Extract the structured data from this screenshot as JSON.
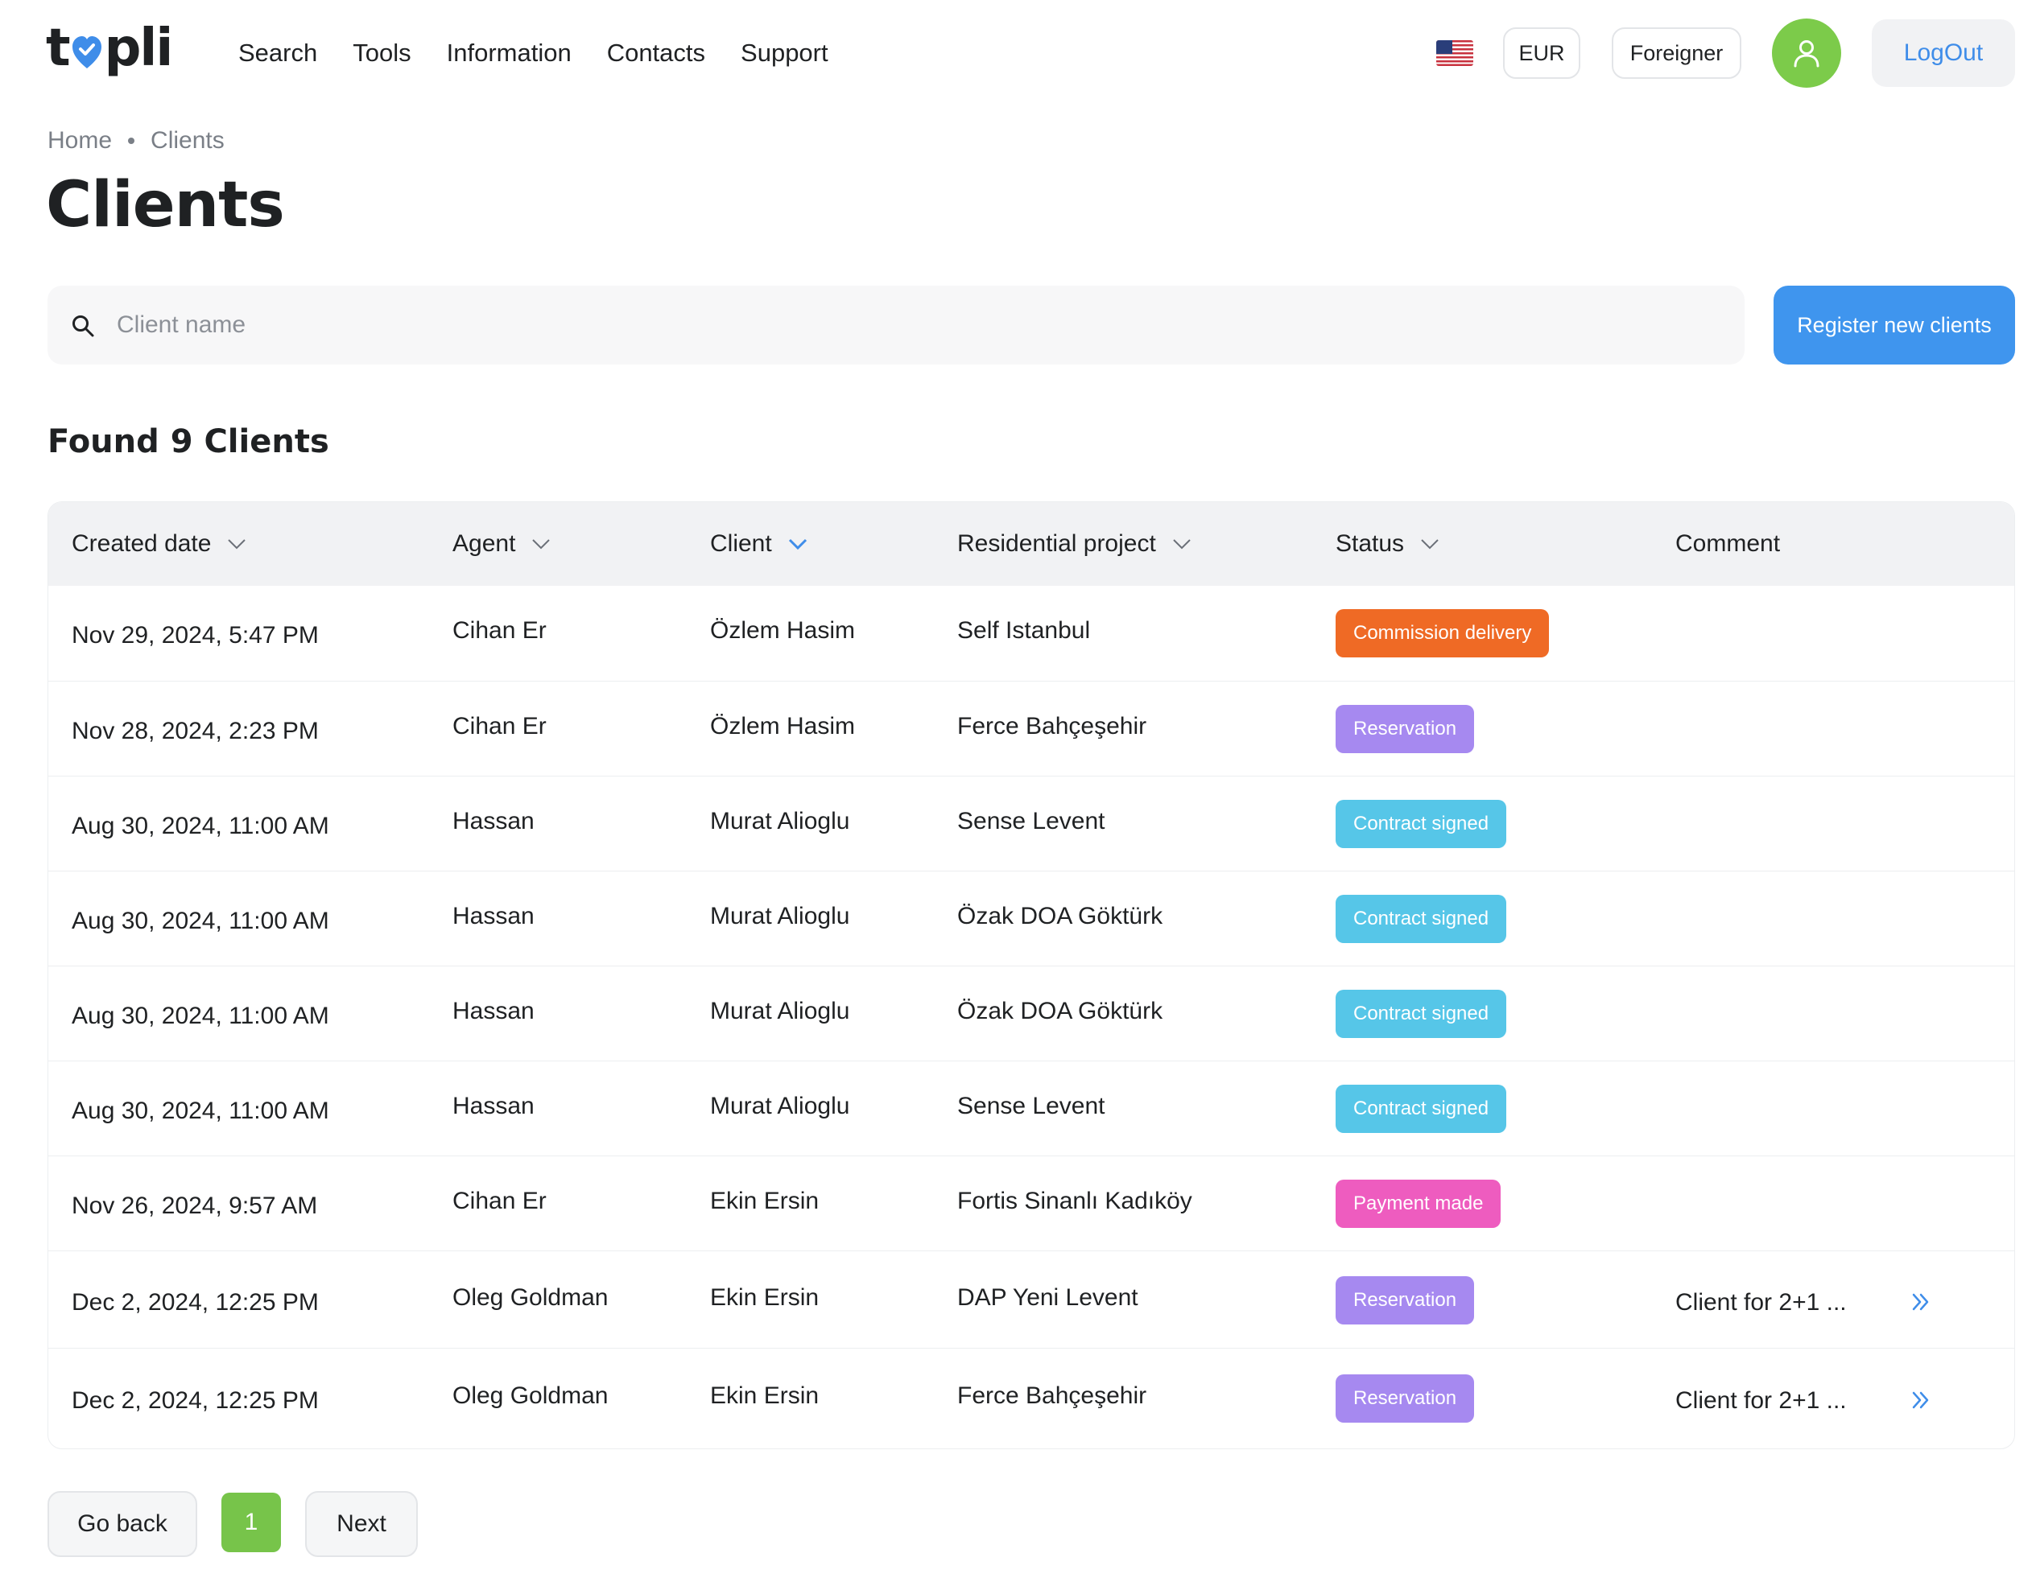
{
  "header": {
    "logo_text_left": "t",
    "logo_text_right": "pli",
    "nav": [
      "Search",
      "Tools",
      "Information",
      "Contacts",
      "Support"
    ],
    "currency": "EUR",
    "user_type": "Foreigner",
    "logout_label": "LogOut"
  },
  "breadcrumb": [
    "Home",
    "Clients"
  ],
  "page_title": "Clients",
  "search": {
    "placeholder": "Client name",
    "value": ""
  },
  "register_label": "Register new clients",
  "found_label": "Found 9 Clients",
  "table": {
    "columns": [
      "Created date",
      "Agent",
      "Client",
      "Residential project",
      "Status",
      "Comment"
    ],
    "rows": [
      {
        "date": "Nov 29, 2024, 5:47 PM",
        "agent": "Cihan Er",
        "client": "Özlem Hasim",
        "project": "Self Istanbul",
        "status": "Commission delivery",
        "status_color": "#ef6a25",
        "comment": ""
      },
      {
        "date": "Nov 28, 2024, 2:23 PM",
        "agent": "Cihan Er",
        "client": "Özlem Hasim",
        "project": "Ferce Bahçeşehir",
        "status": "Reservation",
        "status_color": "#a689f0",
        "comment": ""
      },
      {
        "date": "Aug 30, 2024, 11:00 AM",
        "agent": "Hassan",
        "client": "Murat Alioglu",
        "project": "Sense Levent",
        "status": "Contract signed",
        "status_color": "#56c6e8",
        "comment": ""
      },
      {
        "date": "Aug 30, 2024, 11:00 AM",
        "agent": "Hassan",
        "client": "Murat Alioglu",
        "project": "Özak DOA Göktürk",
        "status": "Contract signed",
        "status_color": "#56c6e8",
        "comment": ""
      },
      {
        "date": "Aug 30, 2024, 11:00 AM",
        "agent": "Hassan",
        "client": "Murat Alioglu",
        "project": "Özak DOA Göktürk",
        "status": "Contract signed",
        "status_color": "#56c6e8",
        "comment": ""
      },
      {
        "date": "Aug 30, 2024, 11:00 AM",
        "agent": "Hassan",
        "client": "Murat Alioglu",
        "project": "Sense Levent",
        "status": "Contract signed",
        "status_color": "#56c6e8",
        "comment": ""
      },
      {
        "date": "Nov 26, 2024, 9:57 AM",
        "agent": "Cihan Er",
        "client": "Ekin Ersin",
        "project": "Fortis Sinanlı Kadıköy",
        "status": "Payment made",
        "status_color": "#ee5cbf",
        "comment": ""
      },
      {
        "date": "Dec 2, 2024, 12:25 PM",
        "agent": "Oleg Goldman",
        "client": "Ekin Ersin",
        "project": "DAP Yeni Levent",
        "status": "Reservation",
        "status_color": "#a689f0",
        "comment": "Client for 2+1 ..."
      },
      {
        "date": "Dec 2, 2024, 12:25 PM",
        "agent": "Oleg Goldman",
        "client": "Ekin Ersin",
        "project": "Ferce Bahçeşehir",
        "status": "Reservation",
        "status_color": "#a689f0",
        "comment": "Client for 2+1 ..."
      }
    ]
  },
  "pagination": {
    "back_label": "Go back",
    "current_page": "1",
    "next_label": "Next"
  },
  "colors": {
    "accent_blue": "#3f95ee",
    "accent_green": "#77c44a",
    "logo_heart": "#3f8de9"
  }
}
